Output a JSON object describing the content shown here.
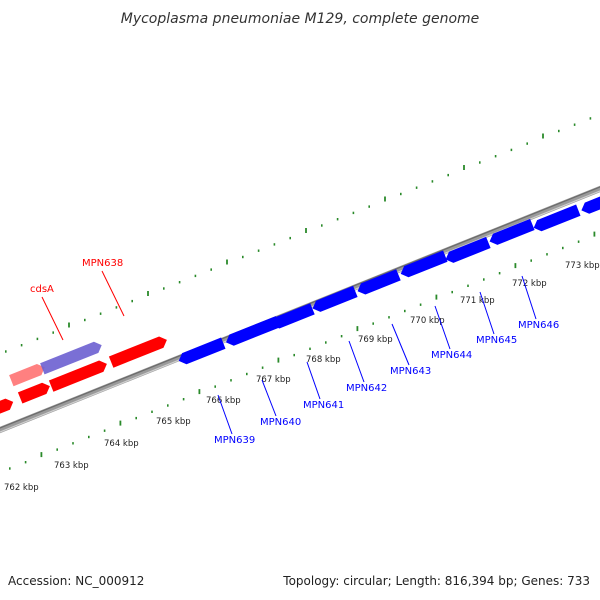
{
  "title": "Mycoplasma pneumoniae M129, complete genome",
  "footer": {
    "accession": "Accession: NC_000912",
    "summary": "Topology: circular; Length: 816,394 bp; Genes: 733"
  },
  "colors": {
    "forward_gene": "#ff0000",
    "reverse_gene": "#0000ff",
    "highlight_fwd": "#ff8080",
    "highlight_rev": "#6b5fd0",
    "backbone": "#808080",
    "tick": "#2a8a2a"
  },
  "tick_labels": [
    "762 kbp",
    "763 kbp",
    "764 kbp",
    "765 kbp",
    "766 kbp",
    "767 kbp",
    "768 kbp",
    "769 kbp",
    "770 kbp",
    "771 kbp",
    "772 kbp",
    "773 kbp"
  ],
  "gene_labels": {
    "forward": [
      "cdsA",
      "MPN638"
    ],
    "reverse": [
      "MPN639",
      "MPN640",
      "MPN641",
      "MPN642",
      "MPN643",
      "MPN644",
      "MPN645",
      "MPN646"
    ]
  }
}
